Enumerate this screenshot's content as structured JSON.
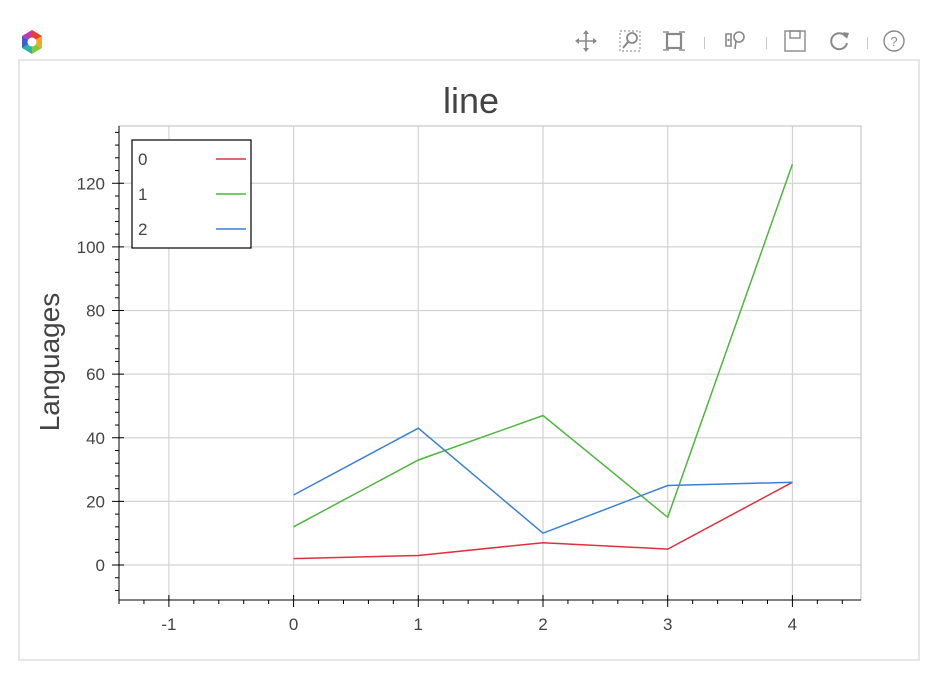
{
  "toolbar": {
    "tools": [
      {
        "name": "pan-tool",
        "icon": "pan-icon",
        "active": true
      },
      {
        "name": "box-zoom-tool",
        "icon": "box-zoom-icon",
        "active": false
      },
      {
        "name": "box-select-tool",
        "icon": "box-select-icon",
        "active": false
      },
      {
        "name": "hover-tool",
        "icon": "hover-icon",
        "active": true
      },
      {
        "name": "save-tool",
        "icon": "save-icon",
        "active": false
      },
      {
        "name": "reset-tool",
        "icon": "reset-icon",
        "active": false
      },
      {
        "name": "help-tool",
        "icon": "help-icon",
        "active": false
      }
    ],
    "accent_color": "#2aa5e0"
  },
  "chart_data": {
    "type": "line",
    "title": "line",
    "xlabel": "",
    "ylabel": "Languages",
    "x": [
      0,
      1,
      2,
      3,
      4
    ],
    "xlim": [
      -1.4,
      4.55
    ],
    "ylim": [
      -11,
      138
    ],
    "xticks": [
      -1,
      0,
      1,
      2,
      3,
      4
    ],
    "yticks": [
      0,
      20,
      40,
      60,
      80,
      100,
      120
    ],
    "grid": true,
    "legend_position": "top-left",
    "series": [
      {
        "name": "0",
        "color": "#e0303e",
        "values": [
          2,
          3,
          7,
          5,
          26
        ]
      },
      {
        "name": "1",
        "color": "#4cb83c",
        "values": [
          12,
          33,
          47,
          15,
          126
        ]
      },
      {
        "name": "2",
        "color": "#3a80d8",
        "values": [
          22,
          43,
          10,
          25,
          26
        ]
      }
    ]
  }
}
